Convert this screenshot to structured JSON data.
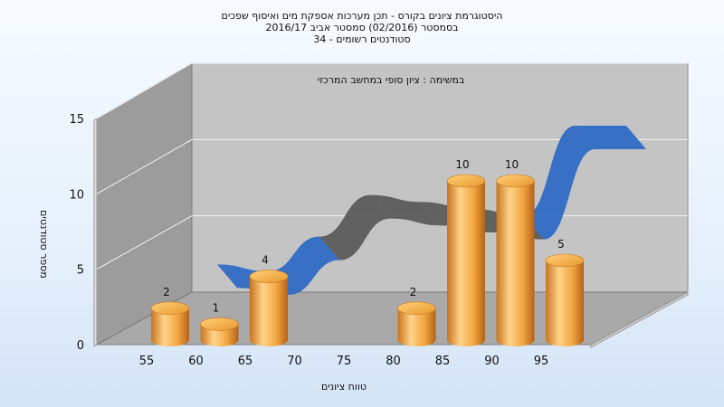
{
  "chart_data": {
    "type": "bar",
    "title": [
      "היסטוגרמת ציונים בקורס - תכן מערכות אספקת מים ואיסוף שפכים",
      "בסמסטר  (02/2016)  סמסטר אביב  2016/17",
      "סטודנטים רשומים - 34"
    ],
    "subtitle": "במשימה : ציון סופי במחשב המרכזי",
    "xlabel": "טווח ציונים",
    "ylabel": "מספר סטודנטים",
    "categories": [
      "55",
      "60",
      "65",
      "70",
      "75",
      "80",
      "85",
      "90",
      "95"
    ],
    "x_ticks": [
      "55",
      "60",
      "65",
      "70",
      "75",
      "80",
      "85",
      "90",
      "95"
    ],
    "y_ticks": [
      "0",
      "5",
      "10",
      "15"
    ],
    "ylim": [
      0,
      15
    ],
    "series": [
      {
        "values": [
          2,
          1,
          4,
          0,
          0,
          2,
          10,
          10,
          5
        ],
        "labels": [
          "2",
          "1",
          "4",
          "",
          "",
          "2",
          "10",
          "10",
          "5"
        ],
        "style": "cylinder",
        "color": "#f0a63a"
      }
    ],
    "grid": true,
    "legend": "none",
    "back_curve": {
      "description_visible": false,
      "x": [
        "55",
        "60",
        "65",
        "70",
        "75",
        "80",
        "85",
        "90",
        "95"
      ],
      "values": [
        2,
        1.5,
        4,
        7,
        6.5,
        6,
        5.5,
        12,
        12
      ],
      "colors": [
        "#2f6cc4",
        "#5b5b5b"
      ]
    }
  }
}
